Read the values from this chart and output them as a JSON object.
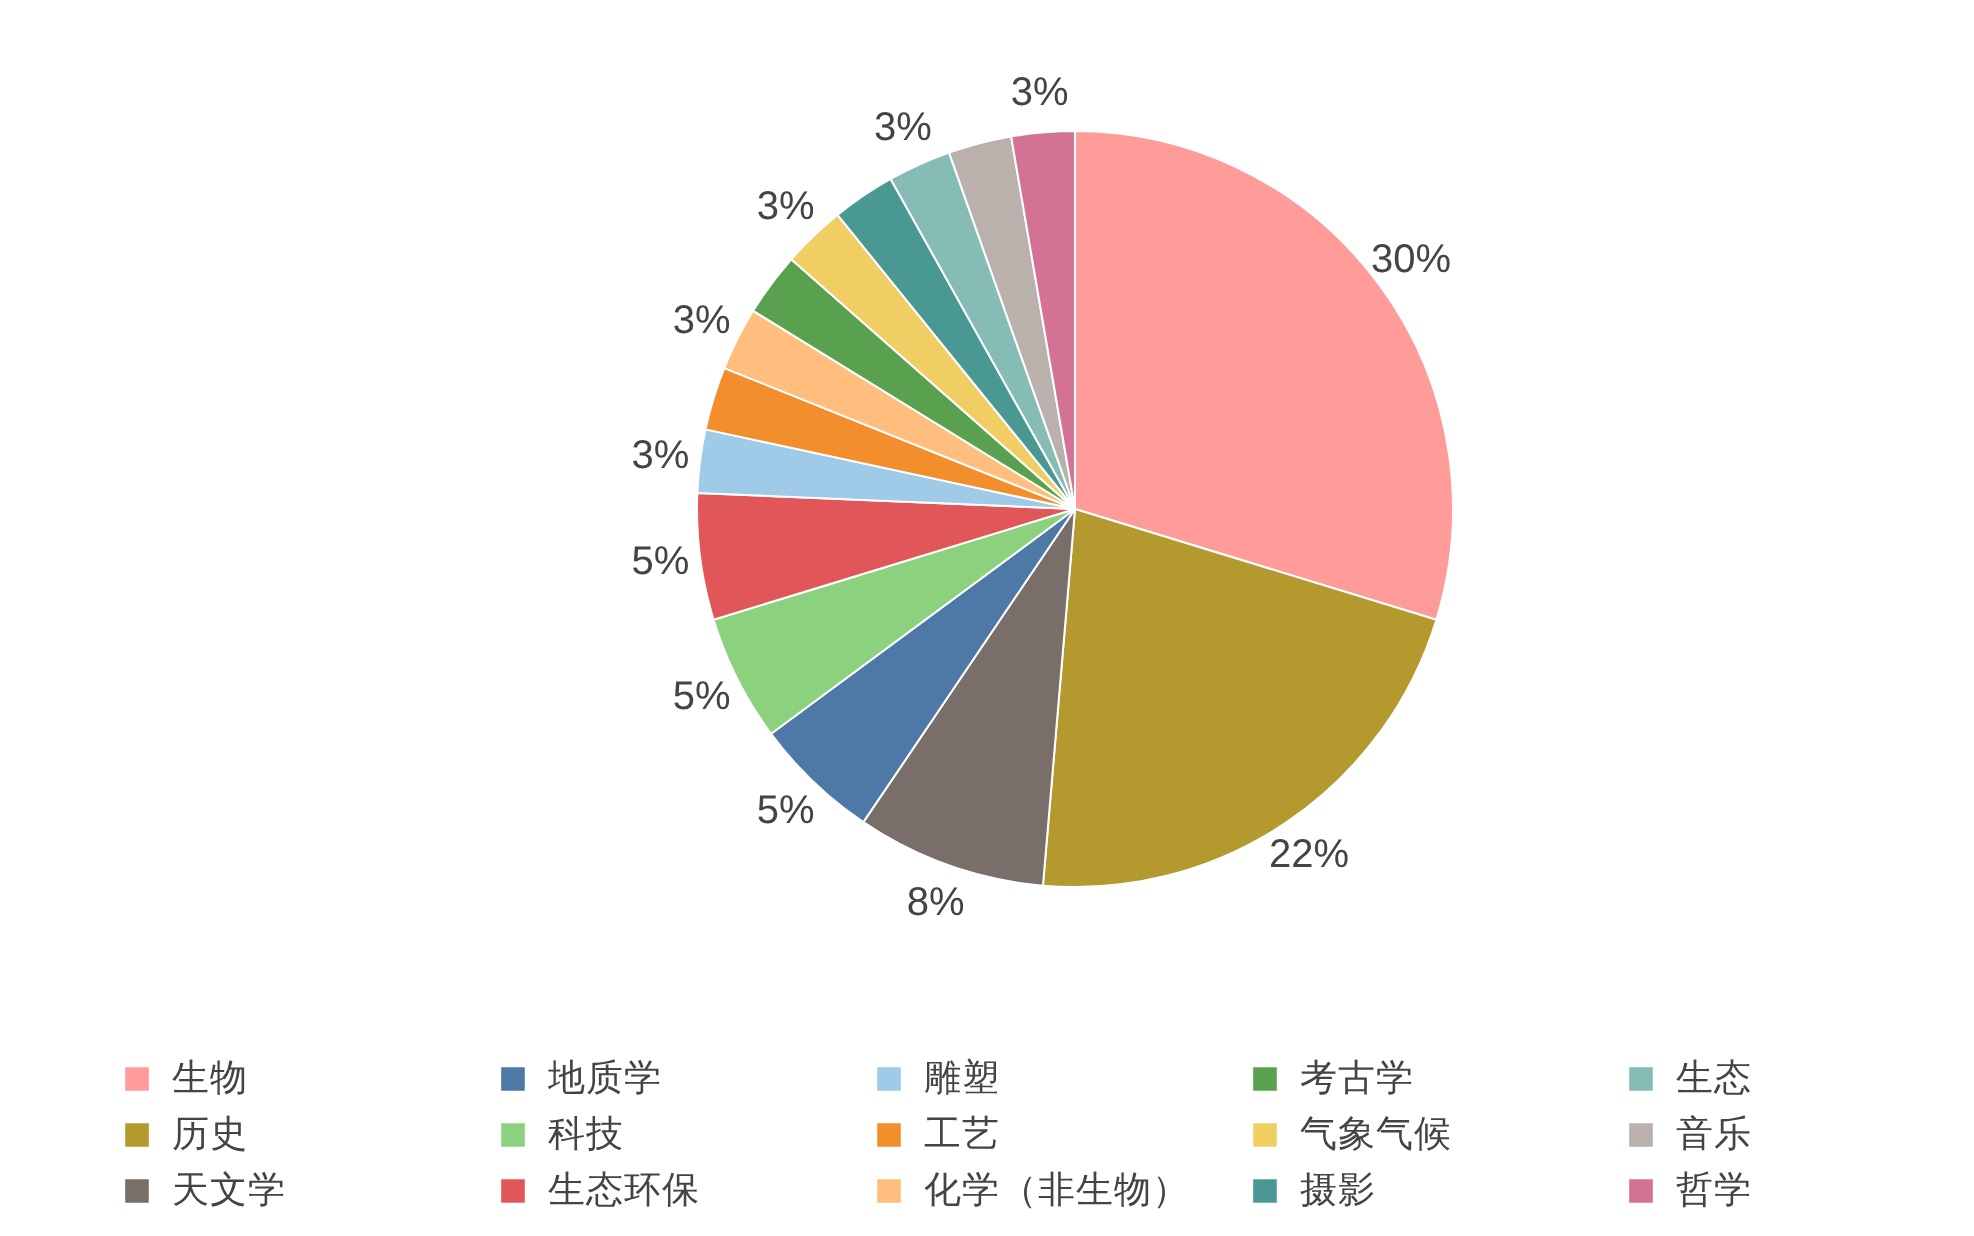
{
  "chart_data": {
    "type": "pie",
    "categories": [
      "生物",
      "历史",
      "天文学",
      "地质学",
      "科技",
      "生态环保",
      "雕塑",
      "工艺",
      "化学（非生物）",
      "考古学",
      "气象气候",
      "摄影",
      "生态",
      "音乐",
      "哲学"
    ],
    "values": [
      29.7,
      21.6,
      8.1,
      5.4,
      5.4,
      5.4,
      2.7,
      2.7,
      2.7,
      2.7,
      2.7,
      2.7,
      2.7,
      2.7,
      2.7
    ],
    "value_labels": [
      "30%",
      "22%",
      "8%",
      "5%",
      "5%",
      "5%",
      "3%",
      null,
      "3%",
      null,
      "3%",
      null,
      "3%",
      null,
      "3%"
    ],
    "colors": [
      "#ff9c9a",
      "#b3992e",
      "#7a6e6b",
      "#4e79a7",
      "#8cd17d",
      "#e15759",
      "#a0cbe8",
      "#f28e2b",
      "#ffbe7d",
      "#59a14f",
      "#f1ce63",
      "#499894",
      "#86bcb6",
      "#bab0ac",
      "#d37295"
    ],
    "legend": "bottom"
  }
}
